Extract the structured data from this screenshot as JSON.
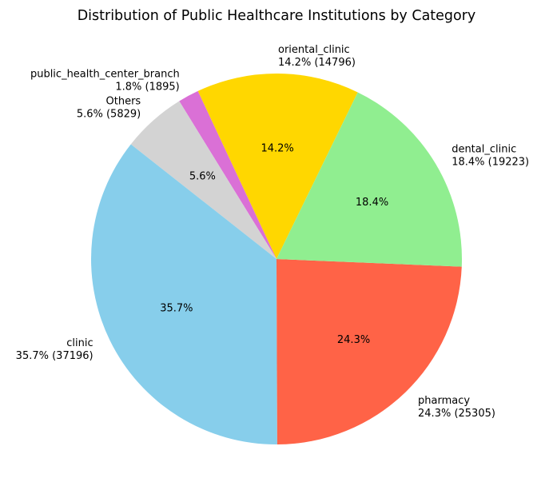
{
  "chart_data": {
    "type": "pie",
    "title": "Distribution of Public Healthcare Institutions by Category",
    "slices": [
      {
        "label": "oriental_clinic",
        "value": 14796,
        "percent": "14.2%",
        "color": "#FFD700"
      },
      {
        "label": "public_health_center_branch",
        "value": 1895,
        "percent": "1.8%",
        "color": "#DA70D6"
      },
      {
        "label": "Others",
        "value": 5829,
        "percent": "5.6%",
        "color": "#D3D3D3"
      },
      {
        "label": "clinic",
        "value": 37196,
        "percent": "35.7%",
        "color": "#87CEEB"
      },
      {
        "label": "pharmacy",
        "value": 25305,
        "percent": "24.3%",
        "color": "#FF6347"
      },
      {
        "label": "dental_clinic",
        "value": 19223,
        "percent": "18.4%",
        "color": "#90EE90"
      }
    ],
    "outer_labels": [
      {
        "name": "oriental_clinic",
        "line2": "14.2% (14796)"
      },
      {
        "name": "public_health_center_branch",
        "line2": "1.8% (1895)"
      },
      {
        "name": "Others",
        "line2": "5.6% (5829)"
      },
      {
        "name": "clinic",
        "line2": "35.7% (37196)"
      },
      {
        "name": "pharmacy",
        "line2": "24.3% (25305)"
      },
      {
        "name": "dental_clinic",
        "line2": "18.4% (19223)"
      }
    ],
    "inner_labels": [
      "14.2%",
      "",
      "5.6%",
      "35.7%",
      "24.3%",
      "18.4%"
    ]
  }
}
